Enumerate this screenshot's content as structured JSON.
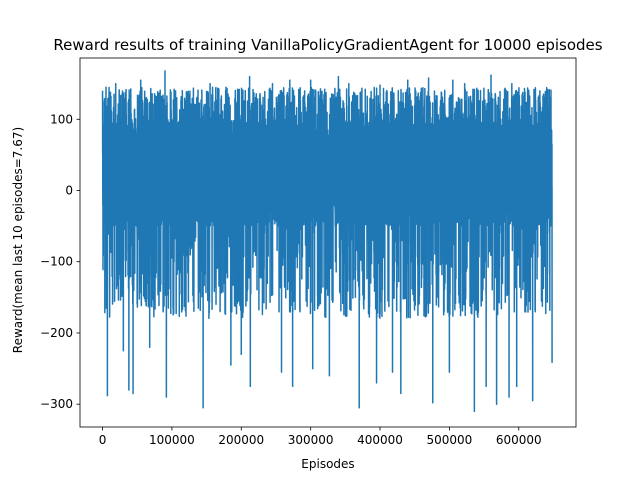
{
  "chart_data": {
    "type": "line",
    "title": "Reward results of training VanillaPolicyGradientAgent for 10000 episodes",
    "xlabel": "Episodes",
    "ylabel": "Reward(mean last 10 episodes=7.67)",
    "xlim": [
      -32500,
      682500
    ],
    "ylim": [
      -332,
      186
    ],
    "xticks": [
      0,
      100000,
      200000,
      300000,
      400000,
      500000,
      600000
    ],
    "xtick_labels": [
      "0",
      "100000",
      "200000",
      "300000",
      "400000",
      "500000",
      "600000"
    ],
    "yticks": [
      -300,
      -200,
      -100,
      0,
      100
    ],
    "ytick_labels": [
      "−300",
      "−200",
      "−100",
      "0",
      "100"
    ],
    "grid": false,
    "legend": "none",
    "series": [
      {
        "color": "#1f77b4",
        "x_range": [
          0,
          648000
        ],
        "num_points": 10000,
        "typical_band": [
          -50,
          100
        ],
        "max": 168,
        "min": -310,
        "peaks_high": [
          {
            "x": 0,
            "y": 140
          },
          {
            "x": 5000,
            "y": 145
          },
          {
            "x": 19000,
            "y": 150
          },
          {
            "x": 55000,
            "y": 155
          },
          {
            "x": 90000,
            "y": 168
          },
          {
            "x": 115000,
            "y": 140
          },
          {
            "x": 155000,
            "y": 150
          },
          {
            "x": 212000,
            "y": 160
          },
          {
            "x": 245000,
            "y": 150
          },
          {
            "x": 270000,
            "y": 155
          },
          {
            "x": 300000,
            "y": 155
          },
          {
            "x": 340000,
            "y": 160
          },
          {
            "x": 355000,
            "y": 150
          },
          {
            "x": 400000,
            "y": 148
          },
          {
            "x": 440000,
            "y": 155
          },
          {
            "x": 470000,
            "y": 158
          },
          {
            "x": 505000,
            "y": 155
          },
          {
            "x": 522000,
            "y": 150
          },
          {
            "x": 560000,
            "y": 162
          },
          {
            "x": 590000,
            "y": 150
          },
          {
            "x": 625000,
            "y": 100
          },
          {
            "x": 645000,
            "y": 98
          }
        ],
        "troughs_low": [
          {
            "x": 7000,
            "y": -288
          },
          {
            "x": 30000,
            "y": -225
          },
          {
            "x": 38000,
            "y": -280
          },
          {
            "x": 44000,
            "y": -285
          },
          {
            "x": 68000,
            "y": -220
          },
          {
            "x": 92000,
            "y": -290
          },
          {
            "x": 145000,
            "y": -305
          },
          {
            "x": 185000,
            "y": -245
          },
          {
            "x": 200000,
            "y": -230
          },
          {
            "x": 213000,
            "y": -275
          },
          {
            "x": 258000,
            "y": -255
          },
          {
            "x": 274000,
            "y": -275
          },
          {
            "x": 303000,
            "y": -250
          },
          {
            "x": 327000,
            "y": -260
          },
          {
            "x": 370000,
            "y": -305
          },
          {
            "x": 395000,
            "y": -270
          },
          {
            "x": 418000,
            "y": -255
          },
          {
            "x": 430000,
            "y": -285
          },
          {
            "x": 476000,
            "y": -298
          },
          {
            "x": 500000,
            "y": -255
          },
          {
            "x": 536000,
            "y": -310
          },
          {
            "x": 553000,
            "y": -275
          },
          {
            "x": 568000,
            "y": -300
          },
          {
            "x": 586000,
            "y": -290
          },
          {
            "x": 597000,
            "y": -275
          },
          {
            "x": 620000,
            "y": -295
          },
          {
            "x": 648000,
            "y": -242
          }
        ]
      }
    ]
  }
}
